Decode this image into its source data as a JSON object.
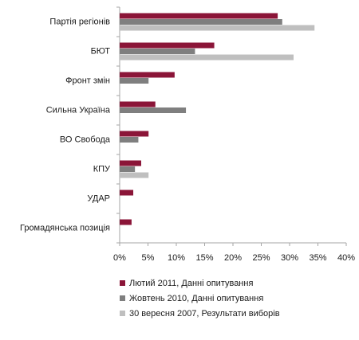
{
  "chart_data": {
    "type": "bar",
    "orientation": "horizontal",
    "title": "",
    "xlabel": "",
    "ylabel": "",
    "xlim": [
      0,
      40
    ],
    "x_tick_step": 5,
    "x_tick_suffix": "%",
    "grid": false,
    "legend_position": "bottom",
    "categories": [
      "Партія регіонів",
      "БЮТ",
      "Фронт змін",
      "Сильна Україна",
      "ВО Свобода",
      "КПУ",
      "УДАР",
      "Громадянська позиція"
    ],
    "series": [
      {
        "name": "Лютий 2011, Данні опитування",
        "color": "#8b1538",
        "values": [
          27.9,
          16.7,
          9.7,
          6.3,
          5.1,
          3.8,
          2.4,
          2.1
        ]
      },
      {
        "name": "Жовтень 2010, Данні опитування",
        "color": "#7f7f7f",
        "values": [
          28.7,
          13.3,
          5.1,
          11.7,
          3.3,
          2.7,
          null,
          null
        ]
      },
      {
        "name": "30 вересня 2007, Результати виборів",
        "color": "#bfbfbf",
        "values": [
          34.4,
          30.7,
          null,
          null,
          null,
          5.1,
          null,
          null
        ]
      }
    ]
  }
}
